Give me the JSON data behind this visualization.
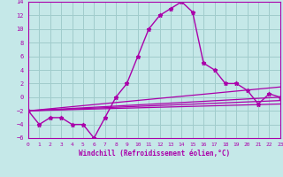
{
  "title": "",
  "xlabel": "Windchill (Refroidissement éolien,°C)",
  "ylabel": "",
  "bg_color": "#c5e8e8",
  "grid_color": "#a0cccc",
  "line_color": "#aa00aa",
  "spine_color": "#aa00aa",
  "xlim": [
    0,
    23
  ],
  "ylim": [
    -6,
    14
  ],
  "xticks": [
    0,
    1,
    2,
    3,
    4,
    5,
    6,
    7,
    8,
    9,
    10,
    11,
    12,
    13,
    14,
    15,
    16,
    17,
    18,
    19,
    20,
    21,
    22,
    23
  ],
  "yticks": [
    -6,
    -4,
    -2,
    0,
    2,
    4,
    6,
    8,
    10,
    12,
    14
  ],
  "series_main": {
    "x": [
      0,
      1,
      2,
      3,
      4,
      5,
      6,
      7,
      8,
      9,
      10,
      11,
      12,
      13,
      14,
      15,
      16,
      17,
      18,
      19,
      20,
      21,
      22,
      23
    ],
    "y": [
      -2,
      -4,
      -3,
      -3,
      -4,
      -4,
      -6,
      -3,
      0,
      2,
      6,
      10,
      12,
      13,
      14,
      12.5,
      5,
      4,
      2,
      2,
      1,
      -1,
      0.5,
      0
    ]
  },
  "series_lines": [
    {
      "x": [
        0,
        23
      ],
      "y": [
        -2,
        1.5
      ]
    },
    {
      "x": [
        0,
        23
      ],
      "y": [
        -2,
        0.0
      ]
    },
    {
      "x": [
        0,
        23
      ],
      "y": [
        -2,
        -0.5
      ]
    },
    {
      "x": [
        0,
        23
      ],
      "y": [
        -2,
        -1.0
      ]
    }
  ]
}
